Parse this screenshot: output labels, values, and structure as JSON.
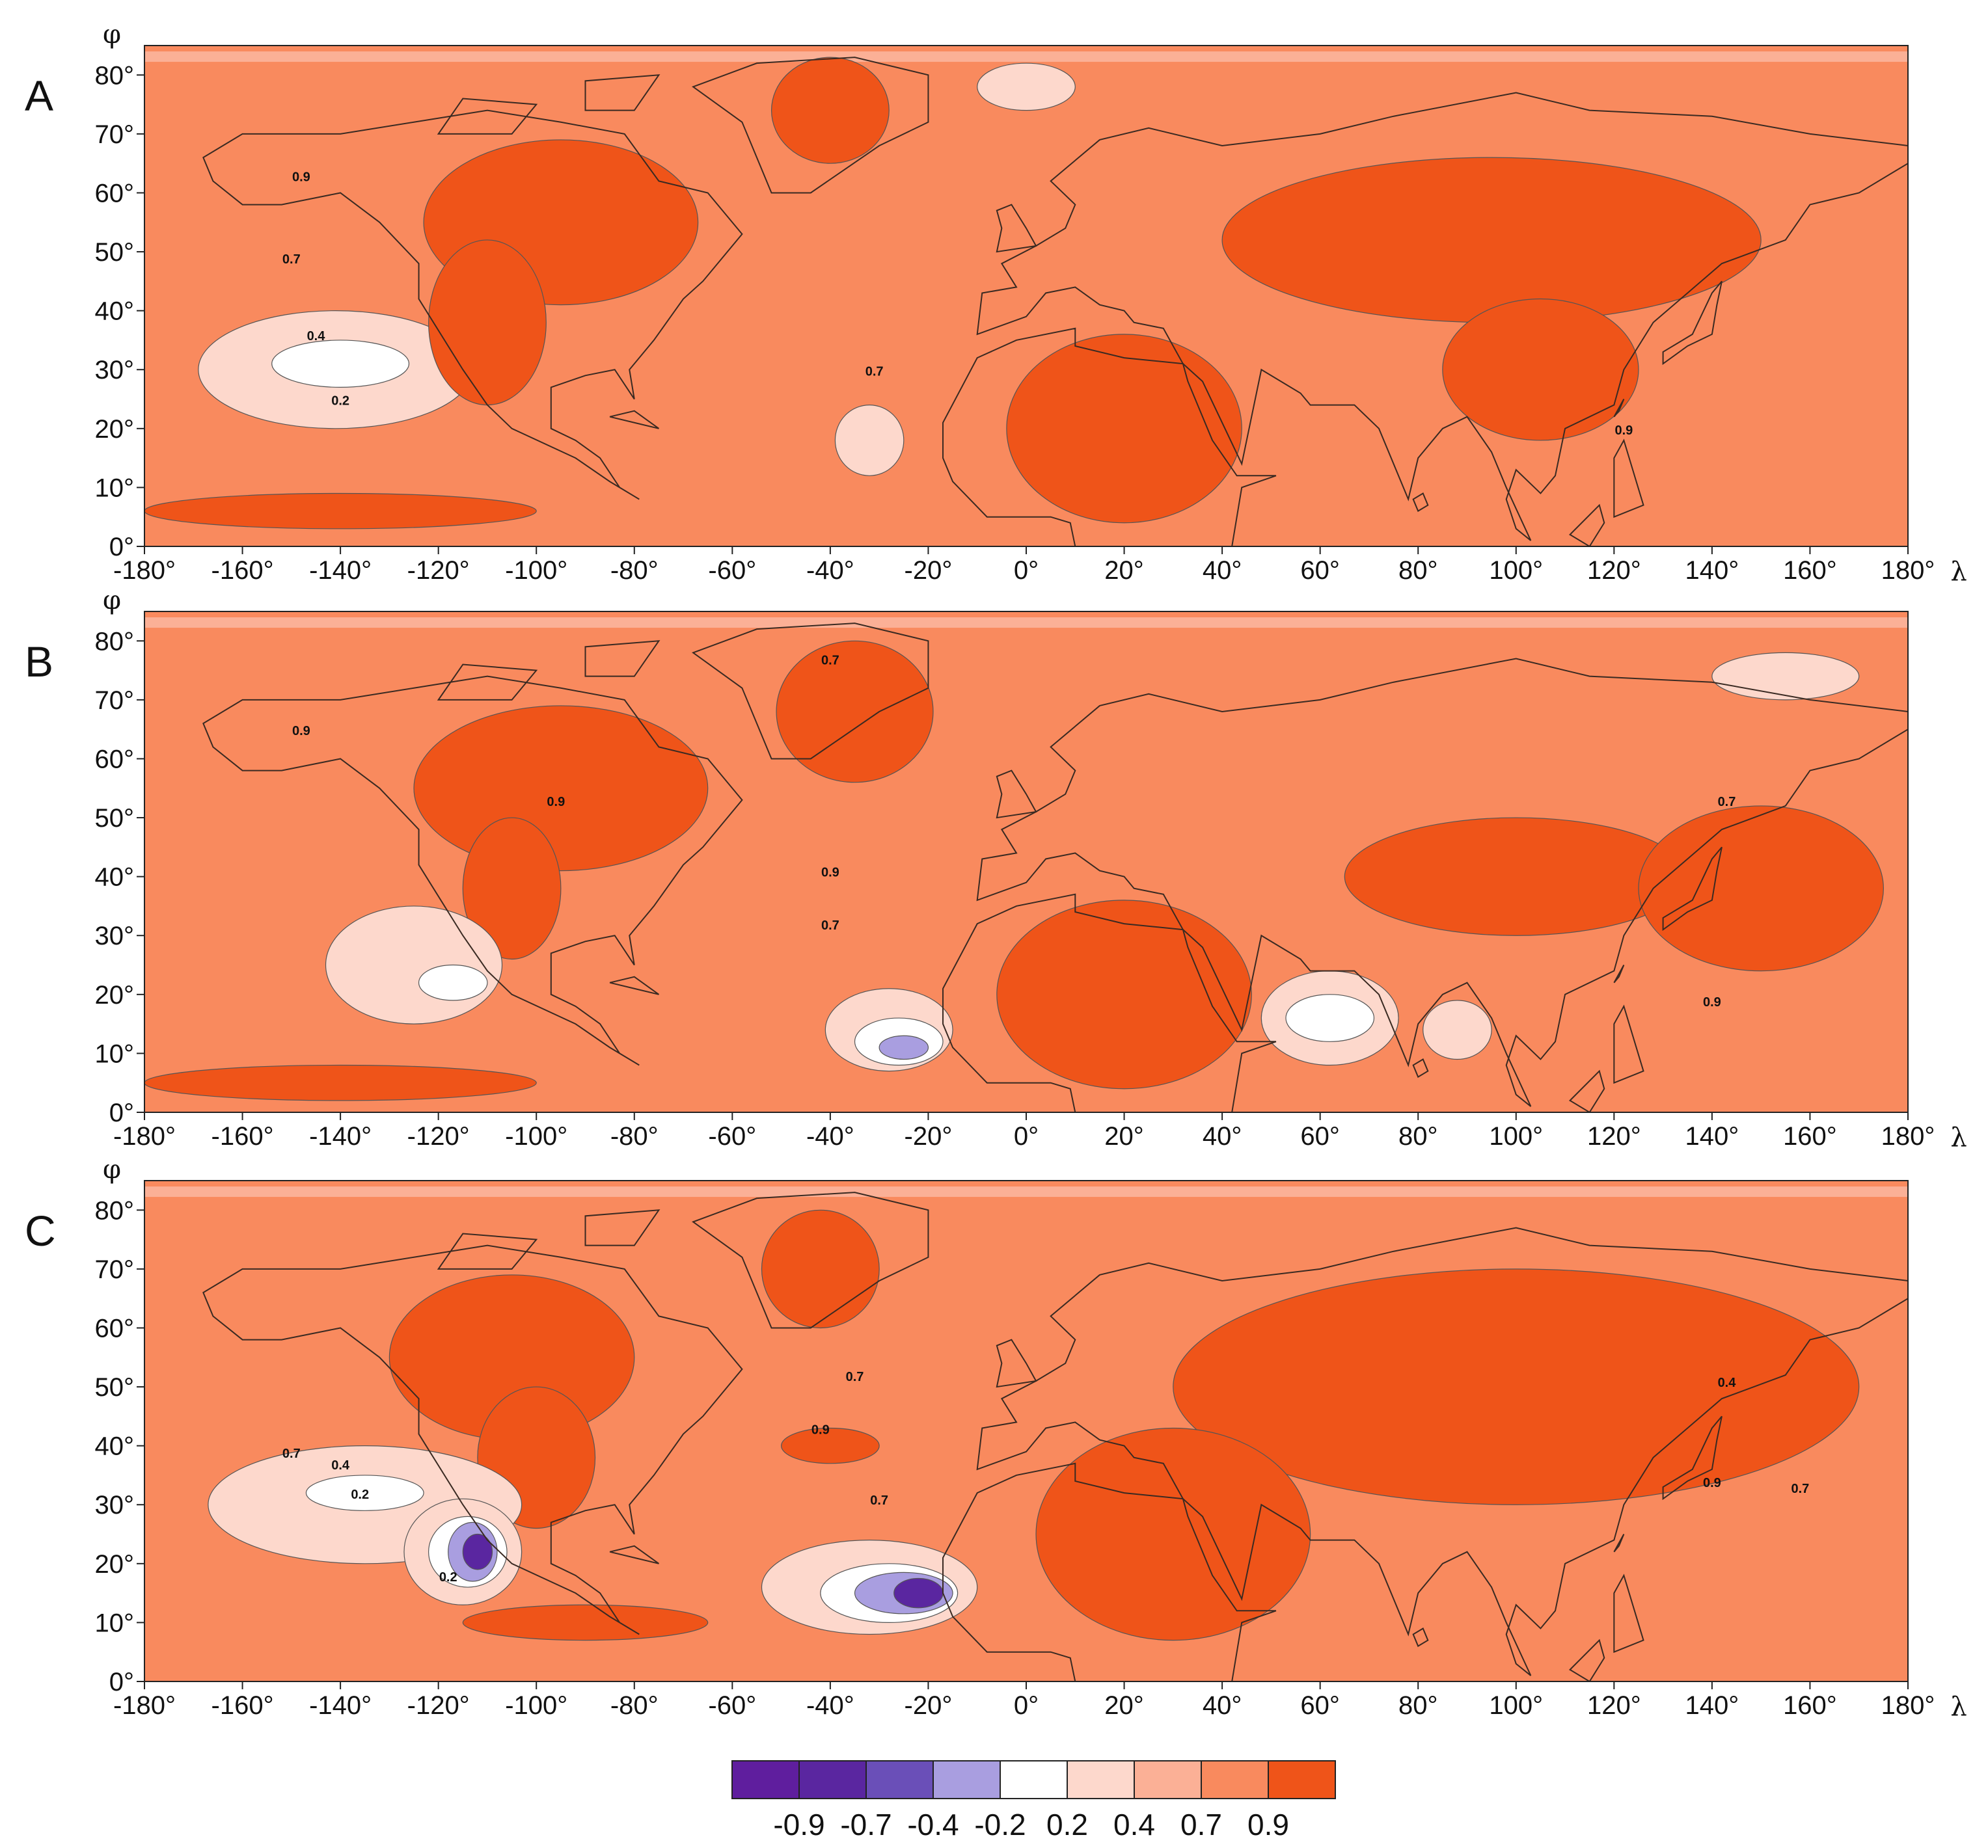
{
  "panels": [
    {
      "letter": "A",
      "contour_labels": [
        "0.9",
        "0.7",
        "0.4",
        "0.2",
        "0.7",
        "0.9"
      ],
      "blobs": [
        {
          "level": 0.4,
          "lon": -141,
          "lat": 30,
          "rlon": 28,
          "rlat": 10
        },
        {
          "level": 0.2,
          "lon": -140,
          "lat": 31,
          "rlon": 14,
          "rlat": 4
        },
        {
          "level": 0.4,
          "lon": -32,
          "lat": 18,
          "rlon": 7,
          "rlat": 6
        },
        {
          "level": 0.9,
          "lon": -95,
          "lat": 55,
          "rlon": 28,
          "rlat": 14
        },
        {
          "level": 0.9,
          "lon": -110,
          "lat": 38,
          "rlon": 12,
          "rlat": 14
        },
        {
          "level": 0.9,
          "lon": -40,
          "lat": 74,
          "rlon": 12,
          "rlat": 9
        },
        {
          "level": 0.9,
          "lon": 20,
          "lat": 20,
          "rlon": 24,
          "rlat": 16
        },
        {
          "level": 0.9,
          "lon": 95,
          "lat": 52,
          "rlon": 55,
          "rlat": 14
        },
        {
          "level": 0.9,
          "lon": 105,
          "lat": 30,
          "rlon": 20,
          "rlat": 12
        },
        {
          "level": 0.9,
          "lon": -140,
          "lat": 6,
          "rlon": 40,
          "rlat": 3
        },
        {
          "level": 0.4,
          "lon": 0,
          "lat": 78,
          "rlon": 10,
          "rlat": 4
        }
      ]
    },
    {
      "letter": "B",
      "contour_labels": [
        "0.9",
        "0.9",
        "0.7",
        "0.7",
        "0.9",
        "0.7",
        "0.9"
      ],
      "blobs": [
        {
          "level": 0.9,
          "lon": -95,
          "lat": 55,
          "rlon": 30,
          "rlat": 14
        },
        {
          "level": 0.9,
          "lon": -105,
          "lat": 38,
          "rlon": 10,
          "rlat": 12
        },
        {
          "level": 0.9,
          "lon": -35,
          "lat": 68,
          "rlon": 16,
          "rlat": 12
        },
        {
          "level": 0.9,
          "lon": 20,
          "lat": 20,
          "rlon": 26,
          "rlat": 16
        },
        {
          "level": 0.9,
          "lon": 100,
          "lat": 40,
          "rlon": 35,
          "rlat": 10
        },
        {
          "level": 0.9,
          "lon": 150,
          "lat": 38,
          "rlon": 25,
          "rlat": 14
        },
        {
          "level": 0.9,
          "lon": -140,
          "lat": 5,
          "rlon": 40,
          "rlat": 3
        },
        {
          "level": 0.4,
          "lon": -125,
          "lat": 25,
          "rlon": 18,
          "rlat": 10
        },
        {
          "level": 0.2,
          "lon": -117,
          "lat": 22,
          "rlon": 7,
          "rlat": 3
        },
        {
          "level": 0.4,
          "lon": -28,
          "lat": 14,
          "rlon": 13,
          "rlat": 7
        },
        {
          "level": 0.2,
          "lon": -26,
          "lat": 12,
          "rlon": 9,
          "rlat": 4
        },
        {
          "level": -0.2,
          "lon": -25,
          "lat": 11,
          "rlon": 5,
          "rlat": 2
        },
        {
          "level": 0.4,
          "lon": 62,
          "lat": 16,
          "rlon": 14,
          "rlat": 8
        },
        {
          "level": 0.2,
          "lon": 62,
          "lat": 16,
          "rlon": 9,
          "rlat": 4
        },
        {
          "level": 0.4,
          "lon": 88,
          "lat": 14,
          "rlon": 7,
          "rlat": 5
        },
        {
          "level": 0.4,
          "lon": 155,
          "lat": 74,
          "rlon": 15,
          "rlat": 4
        }
      ]
    },
    {
      "letter": "C",
      "contour_labels": [
        "0.7",
        "0.4",
        "0.2",
        "0.2",
        "0.7",
        "0.9",
        "0.7",
        "0.4",
        "0.9",
        "0.7"
      ],
      "blobs": [
        {
          "level": 0.9,
          "lon": -105,
          "lat": 55,
          "rlon": 25,
          "rlat": 14
        },
        {
          "level": 0.9,
          "lon": -100,
          "lat": 38,
          "rlon": 12,
          "rlat": 12
        },
        {
          "level": 0.9,
          "lon": -42,
          "lat": 70,
          "rlon": 12,
          "rlat": 10
        },
        {
          "level": 0.9,
          "lon": 100,
          "lat": 50,
          "rlon": 70,
          "rlat": 20
        },
        {
          "level": 0.9,
          "lon": 30,
          "lat": 25,
          "rlon": 28,
          "rlat": 18
        },
        {
          "level": 0.9,
          "lon": -40,
          "lat": 40,
          "rlon": 10,
          "rlat": 3
        },
        {
          "level": 0.9,
          "lon": -90,
          "lat": 10,
          "rlon": 25,
          "rlat": 3
        },
        {
          "level": 0.4,
          "lon": -135,
          "lat": 30,
          "rlon": 32,
          "rlat": 10
        },
        {
          "level": 0.2,
          "lon": -135,
          "lat": 32,
          "rlon": 12,
          "rlat": 3
        },
        {
          "level": 0.4,
          "lon": -115,
          "lat": 22,
          "rlon": 12,
          "rlat": 9
        },
        {
          "level": 0.2,
          "lon": -114,
          "lat": 22,
          "rlon": 8,
          "rlat": 6
        },
        {
          "level": -0.2,
          "lon": -113,
          "lat": 22,
          "rlon": 5,
          "rlat": 5
        },
        {
          "level": -0.7,
          "lon": -112,
          "lat": 22,
          "rlon": 3,
          "rlat": 3
        },
        {
          "level": 0.4,
          "lon": -32,
          "lat": 16,
          "rlon": 22,
          "rlat": 8
        },
        {
          "level": 0.2,
          "lon": -28,
          "lat": 15,
          "rlon": 14,
          "rlat": 5
        },
        {
          "level": -0.2,
          "lon": -25,
          "lat": 15,
          "rlon": 10,
          "rlat": 3.5
        },
        {
          "level": -0.7,
          "lon": -22,
          "lat": 15,
          "rlon": 5,
          "rlat": 2.5
        }
      ]
    }
  ],
  "x_ticks": [
    "-180°",
    "-160°",
    "-140°",
    "-120°",
    "-100°",
    "-80°",
    "-60°",
    "-40°",
    "-20°",
    "0°",
    "20°",
    "40°",
    "60°",
    "80°",
    "100°",
    "120°",
    "140°",
    "160°",
    "180°"
  ],
  "y_ticks": [
    "0°",
    "10°",
    "20°",
    "30°",
    "40°",
    "50°",
    "60°",
    "70°",
    "80°"
  ],
  "x_axis_symbol": "λ",
  "y_axis_symbol": "φ",
  "colorbar": {
    "colors": [
      "#5f1e9e",
      "#5a26a0",
      "#6a4fb8",
      "#a99ee0",
      "#ffffff",
      "#fdd8cc",
      "#fbb096",
      "#f98a5e",
      "#ef5419"
    ],
    "labels": [
      "-0.9",
      "-0.7",
      "-0.4",
      "-0.2",
      "0.2",
      "0.4",
      "0.7",
      "0.9"
    ]
  },
  "level_colors": {
    "-0.7": "#5a26a0",
    "-0.2": "#a99ee0",
    "0.2": "#ffffff",
    "0.4": "#fdd8cc",
    "0.7": "#fbb096",
    "0.8": "#f98a5e",
    "0.9": "#ef5419"
  },
  "background_level": "0.8"
}
